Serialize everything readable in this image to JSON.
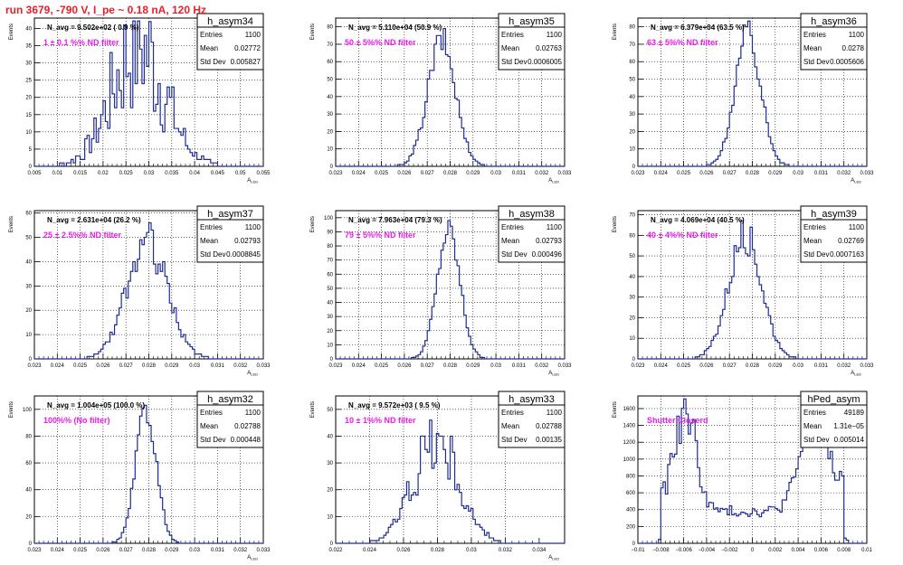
{
  "run_title": "run 3679,  -790 V, I_pe ~ 0.18 nA, 120 Hz",
  "colors": {
    "hist_line": "#1f2d93",
    "annotation": "#e81ce8",
    "title_red": "#e8202a",
    "grid": "#000000"
  },
  "chart_data": [
    {
      "type": "histogram",
      "name": "h_asym34",
      "stats": {
        "Entries": "1100",
        "Mean": "0.02772",
        "Std Dev": "0.005827"
      },
      "navg_label": "N_avg = 9.502e+02 ( 0.9 %)",
      "annotation": "1 ± 0.1 %% ND filter",
      "xlabel": "A_LED",
      "ylabel": "Events",
      "xlim": [
        0.005,
        0.055
      ],
      "ylim": [
        0,
        43
      ],
      "xticks": [
        0.005,
        0.01,
        0.015,
        0.02,
        0.025,
        0.03,
        0.035,
        0.04,
        0.045,
        0.05,
        0.055
      ],
      "xtick_labels": [
        "0.005",
        "0.01",
        "0.015",
        "0.02",
        "0.025",
        "0.03",
        "0.035",
        "0.04",
        "0.045",
        "0.05",
        "0.055"
      ],
      "yticks": [
        0,
        5,
        10,
        15,
        20,
        25,
        30,
        35,
        40
      ],
      "mean": 0.02772,
      "sigma": 0.005827,
      "peak": 35,
      "noise": 0.6,
      "bins": 100
    },
    {
      "type": "histogram",
      "name": "h_asym35",
      "stats": {
        "Entries": "1100",
        "Mean": "0.02763",
        "Std Dev": "0.0006005"
      },
      "navg_label": "N_avg = 5.110e+04 (50.9 %)",
      "annotation": "50 ± 5%% ND filter",
      "xlabel": "A_LED",
      "ylabel": "Events",
      "xlim": [
        0.023,
        0.033
      ],
      "ylim": [
        0,
        85
      ],
      "xticks": [
        0.023,
        0.024,
        0.025,
        0.026,
        0.027,
        0.028,
        0.029,
        0.03,
        0.031,
        0.032,
        0.033
      ],
      "xtick_labels": [
        "0.023",
        "0.024",
        "0.025",
        "0.026",
        "0.027",
        "0.028",
        "0.029",
        "0.03",
        "0.031",
        "0.032",
        "0.033"
      ],
      "yticks": [
        0,
        10,
        20,
        30,
        40,
        50,
        60,
        70,
        80
      ],
      "mean": 0.02763,
      "sigma": 0.0006005,
      "peak": 72,
      "noise": 0.12,
      "bins": 100
    },
    {
      "type": "histogram",
      "name": "h_asym36",
      "stats": {
        "Entries": "1100",
        "Mean": "0.0278",
        "Std Dev": "0.0005606"
      },
      "navg_label": "N_avg = 6.379e+04 (63.5 %)",
      "annotation": "63 ± 5%% ND filter",
      "xlabel": "A_LED",
      "ylabel": "Events",
      "xlim": [
        0.023,
        0.033
      ],
      "ylim": [
        0,
        85
      ],
      "xticks": [
        0.023,
        0.024,
        0.025,
        0.026,
        0.027,
        0.028,
        0.029,
        0.03,
        0.031,
        0.032,
        0.033
      ],
      "xtick_labels": [
        "0.023",
        "0.024",
        "0.025",
        "0.026",
        "0.027",
        "0.028",
        "0.029",
        "0.03",
        "0.031",
        "0.032",
        "0.033"
      ],
      "yticks": [
        0,
        10,
        20,
        30,
        40,
        50,
        60,
        70,
        80
      ],
      "mean": 0.0278,
      "sigma": 0.0005606,
      "peak": 76,
      "noise": 0.12,
      "bins": 100
    },
    {
      "type": "histogram",
      "name": "h_asym37",
      "stats": {
        "Entries": "1100",
        "Mean": "0.02793",
        "Std Dev": "0.0008845"
      },
      "navg_label": "N_avg = 2.631e+04 (26.2 %)",
      "annotation": "25 ± 2.5%% ND filter",
      "xlabel": "A_LED",
      "ylabel": "Events",
      "xlim": [
        0.023,
        0.033
      ],
      "ylim": [
        0,
        61
      ],
      "xticks": [
        0.023,
        0.024,
        0.025,
        0.026,
        0.027,
        0.028,
        0.029,
        0.03,
        0.031,
        0.032,
        0.033
      ],
      "xtick_labels": [
        "0.023",
        "0.024",
        "0.025",
        "0.026",
        "0.027",
        "0.028",
        "0.029",
        "0.03",
        "0.031",
        "0.032",
        "0.033"
      ],
      "yticks": [
        0,
        10,
        20,
        30,
        40,
        50,
        60
      ],
      "mean": 0.02793,
      "sigma": 0.0008845,
      "peak": 48,
      "noise": 0.18,
      "bins": 100
    },
    {
      "type": "histogram",
      "name": "h_asym38",
      "stats": {
        "Entries": "1100",
        "Mean": "0.02793",
        "Std Dev": "0.000496"
      },
      "navg_label": "N_avg = 7.963e+04 (79.3 %)",
      "annotation": "79 ± 5%% ND filter",
      "xlabel": "A_LED",
      "ylabel": "Events",
      "xlim": [
        0.023,
        0.033
      ],
      "ylim": [
        0,
        105
      ],
      "xticks": [
        0.023,
        0.024,
        0.025,
        0.026,
        0.027,
        0.028,
        0.029,
        0.03,
        0.031,
        0.032,
        0.033
      ],
      "xtick_labels": [
        "0.023",
        "0.024",
        "0.025",
        "0.026",
        "0.027",
        "0.028",
        "0.029",
        "0.03",
        "0.031",
        "0.032",
        "0.033"
      ],
      "yticks": [
        0,
        10,
        20,
        30,
        40,
        50,
        60,
        70,
        80,
        90,
        100
      ],
      "mean": 0.02793,
      "sigma": 0.000496,
      "peak": 92,
      "noise": 0.1,
      "bins": 100
    },
    {
      "type": "histogram",
      "name": "h_asym39",
      "stats": {
        "Entries": "1100",
        "Mean": "0.02769",
        "Std Dev": "0.0007163"
      },
      "navg_label": "N_avg = 4.069e+04 (40.5 %)",
      "annotation": "40 ± 4%% ND filter",
      "xlabel": "A_LED",
      "ylabel": "Events",
      "xlim": [
        0.023,
        0.033
      ],
      "ylim": [
        0,
        72
      ],
      "xticks": [
        0.023,
        0.024,
        0.025,
        0.026,
        0.027,
        0.028,
        0.029,
        0.03,
        0.031,
        0.032,
        0.033
      ],
      "xtick_labels": [
        "0.023",
        "0.024",
        "0.025",
        "0.026",
        "0.027",
        "0.028",
        "0.029",
        "0.03",
        "0.031",
        "0.032",
        "0.033"
      ],
      "yticks": [
        0,
        10,
        20,
        30,
        40,
        50,
        60,
        70
      ],
      "mean": 0.02769,
      "sigma": 0.0007163,
      "peak": 60,
      "noise": 0.15,
      "bins": 100
    },
    {
      "type": "histogram",
      "name": "h_asym32",
      "stats": {
        "Entries": "1100",
        "Mean": "0.02788",
        "Std Dev": "0.000448"
      },
      "navg_label": "N_avg = 1.004e+05 (100.0 %)",
      "annotation": "100%% (No filter)",
      "xlabel": "A_LED",
      "ylabel": "Events",
      "xlim": [
        0.023,
        0.033
      ],
      "ylim": [
        0,
        110
      ],
      "xticks": [
        0.023,
        0.024,
        0.025,
        0.026,
        0.027,
        0.028,
        0.029,
        0.03,
        0.031,
        0.032,
        0.033
      ],
      "xtick_labels": [
        "0.023",
        "0.024",
        "0.025",
        "0.026",
        "0.027",
        "0.028",
        "0.029",
        "0.03",
        "0.031",
        "0.032",
        "0.033"
      ],
      "yticks": [
        0,
        20,
        40,
        60,
        80,
        100
      ],
      "mean": 0.02788,
      "sigma": 0.000448,
      "peak": 100,
      "noise": 0.1,
      "bins": 100
    },
    {
      "type": "histogram",
      "name": "h_asym33",
      "stats": {
        "Entries": "1100",
        "Mean": "0.02788",
        "Std Dev": "0.00135"
      },
      "navg_label": "N_avg = 9.572e+03 ( 9.5 %)",
      "annotation": "10 ± 1%% ND filter",
      "xlabel": "A_LED",
      "ylabel": "Events",
      "xlim": [
        0.022,
        0.0355
      ],
      "ylim": [
        0,
        55
      ],
      "xticks": [
        0.022,
        0.024,
        0.026,
        0.028,
        0.03,
        0.032,
        0.034
      ],
      "xtick_labels": [
        "0.022",
        "0.024",
        "0.026",
        "0.028",
        "0.03",
        "0.032",
        "0.034"
      ],
      "yticks": [
        0,
        10,
        20,
        30,
        40,
        50
      ],
      "mean": 0.02788,
      "sigma": 0.00135,
      "peak": 38,
      "noise": 0.35,
      "bins": 100
    },
    {
      "type": "histogram",
      "name": "hPed_asym",
      "stats": {
        "Entries": "49189",
        "Mean": "1.31e−05",
        "Std Dev": "0.005014"
      },
      "navg_label": "",
      "annotation": "Shutter Closerd",
      "xlabel": "",
      "ylabel": "Events",
      "xlim": [
        -0.01,
        0.01
      ],
      "ylim": [
        0,
        1750
      ],
      "xticks": [
        -0.01,
        -0.008,
        -0.006,
        -0.004,
        -0.002,
        0,
        0.002,
        0.004,
        0.006,
        0.008,
        0.01
      ],
      "xtick_labels": [
        "−0.01",
        "−0.008",
        "−0.006",
        "−0.004",
        "−0.002",
        "0",
        "0.002",
        "0.004",
        "0.006",
        "0.008",
        "0.01"
      ],
      "yticks": [
        0,
        200,
        400,
        600,
        800,
        1000,
        1200,
        1400,
        1600
      ],
      "pedestal": true,
      "bins": 100
    }
  ]
}
